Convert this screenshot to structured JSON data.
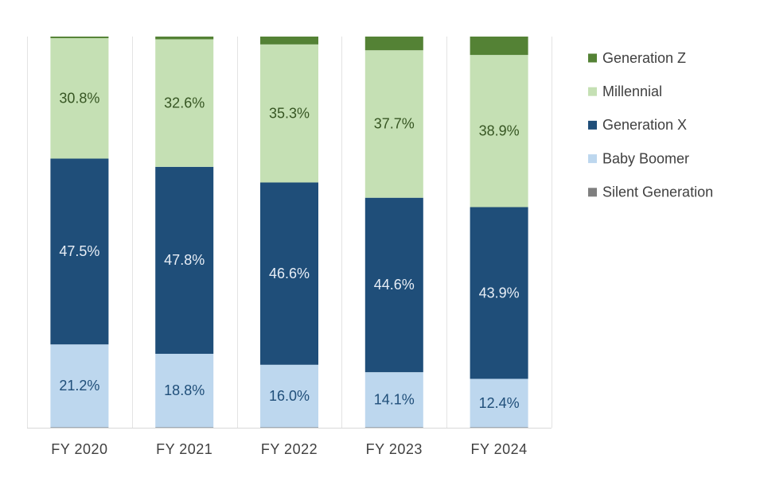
{
  "chart_data": {
    "type": "bar",
    "stacked": true,
    "percent": true,
    "title": "",
    "xlabel": "",
    "ylabel": "",
    "ylim": [
      0,
      100
    ],
    "grid": "vertical separators",
    "legend_position": "right",
    "categories": [
      "FY 2020",
      "FY 2021",
      "FY 2022",
      "FY 2023",
      "FY 2024"
    ],
    "series": [
      {
        "name": "Silent Generation",
        "color": "#7f7f7f",
        "values": [
          0.1,
          0.1,
          0.1,
          0.1,
          0.1
        ],
        "labels": [
          "",
          "",
          "",
          "",
          ""
        ],
        "label_color": "#ffffff"
      },
      {
        "name": "Baby Boomer",
        "color": "#bdd7ee",
        "values": [
          21.2,
          18.8,
          16.0,
          14.1,
          12.4
        ],
        "labels": [
          "21.2%",
          "18.8%",
          "16.0%",
          "14.1%",
          "12.4%"
        ],
        "label_color": "#1f4e79"
      },
      {
        "name": "Generation X",
        "color": "#1f4e79",
        "values": [
          47.5,
          47.8,
          46.6,
          44.6,
          43.9
        ],
        "labels": [
          "47.5%",
          "47.8%",
          "46.6%",
          "44.6%",
          "43.9%"
        ],
        "label_color": "#e8eef6"
      },
      {
        "name": "Millennial",
        "color": "#c5e0b4",
        "values": [
          30.8,
          32.6,
          35.3,
          37.7,
          38.9
        ],
        "labels": [
          "30.8%",
          "32.6%",
          "35.3%",
          "37.7%",
          "38.9%"
        ],
        "label_color": "#375623"
      },
      {
        "name": "Generation Z",
        "color": "#548235",
        "values": [
          0.4,
          0.7,
          2.0,
          3.5,
          4.7
        ],
        "labels": [
          "",
          "",
          "",
          "",
          ""
        ],
        "label_color": "#ffffff"
      }
    ],
    "legend_order": [
      "Generation Z",
      "Millennial",
      "Generation X",
      "Baby Boomer",
      "Silent Generation"
    ]
  }
}
